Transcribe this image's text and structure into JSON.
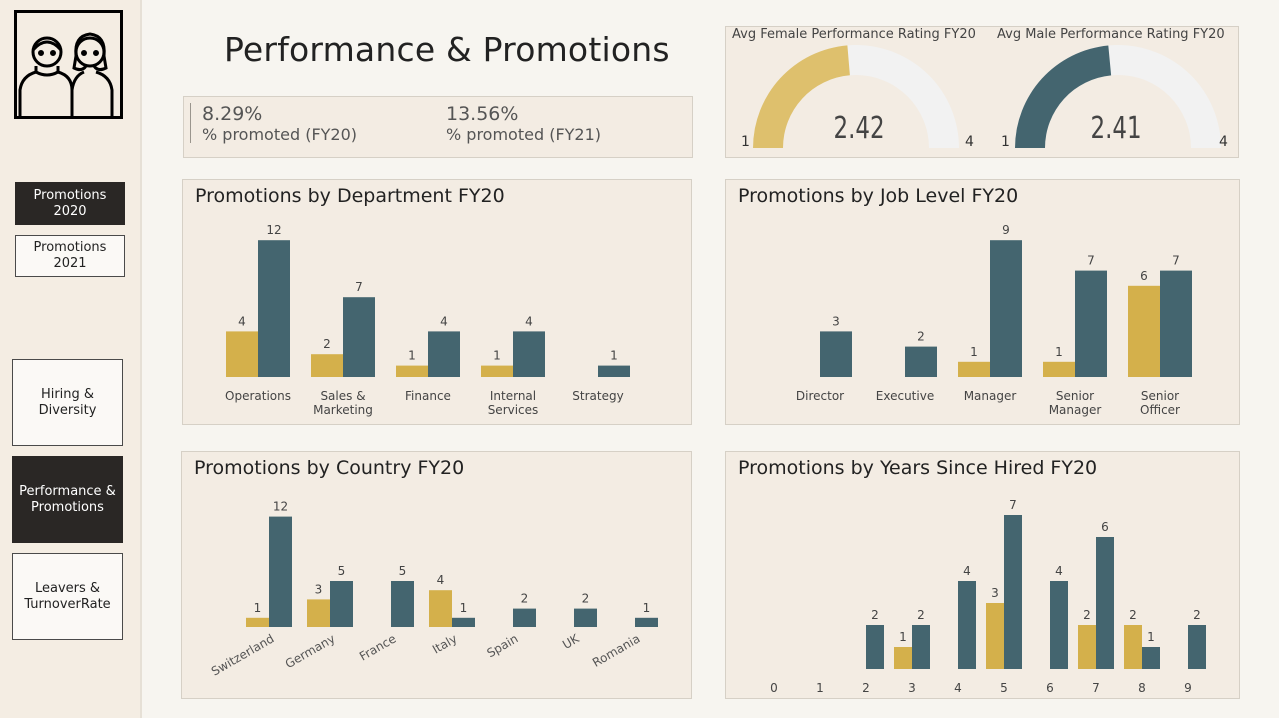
{
  "page_title": "Performance & Promotions",
  "colors": {
    "female": "#d4b04b",
    "male": "#44656f",
    "gauge_bg": "#f2f2f2"
  },
  "nav": {
    "promo2020": "Promotions\n2020",
    "promo2021": "Promotions\n2021",
    "hiring": "Hiring &\nDiversity",
    "performance": "Performance &\nPromotions",
    "leavers": "Leavers &\nTurnoverRate"
  },
  "kpis": {
    "fy20_value": "8.29%",
    "fy20_label": "% promoted (FY20)",
    "fy21_value": "13.56%",
    "fy21_label": "% promoted (FY21)"
  },
  "gauges": {
    "female": {
      "title": "Avg Female Performance Rating FY20",
      "value": 2.42,
      "value_text": "2.42",
      "min": "1",
      "max": "4"
    },
    "male": {
      "title": "Avg Male Performance Rating FY20",
      "value": 2.41,
      "value_text": "2.41",
      "min": "1",
      "max": "4"
    }
  },
  "chart_data": [
    {
      "id": "dept",
      "type": "bar",
      "title": "Promotions by Department FY20",
      "categories": [
        "Operations",
        "Sales &\nMarketing",
        "Finance",
        "Internal\nServices",
        "Strategy"
      ],
      "series": [
        {
          "values": [
            4,
            2,
            1,
            1,
            null
          ]
        },
        {
          "values": [
            12,
            7,
            4,
            4,
            1
          ]
        }
      ],
      "ylim": [
        0,
        12
      ]
    },
    {
      "id": "level",
      "type": "bar",
      "title": "Promotions by Job Level FY20",
      "categories": [
        "Director",
        "Executive",
        "Manager",
        "Senior\nManager",
        "Senior\nOfficer"
      ],
      "series": [
        {
          "values": [
            null,
            null,
            1,
            1,
            6
          ]
        },
        {
          "values": [
            3,
            2,
            9,
            7,
            7
          ]
        }
      ],
      "ylim": [
        0,
        9
      ]
    },
    {
      "id": "country",
      "type": "bar",
      "title": "Promotions by Country FY20",
      "categories": [
        "Switzerland",
        "Germany",
        "France",
        "Italy",
        "Spain",
        "UK",
        "Romania"
      ],
      "series": [
        {
          "values": [
            1,
            3,
            null,
            4,
            null,
            null,
            null
          ]
        },
        {
          "values": [
            12,
            5,
            5,
            1,
            2,
            2,
            1
          ]
        }
      ],
      "ylim": [
        0,
        12
      ]
    },
    {
      "id": "years",
      "type": "bar",
      "title": "Promotions by Years Since Hired FY20",
      "categories": [
        "0",
        "1",
        "2",
        "3",
        "4",
        "5",
        "6",
        "7",
        "8",
        "9"
      ],
      "series": [
        {
          "values": [
            null,
            null,
            null,
            1,
            null,
            3,
            null,
            2,
            2,
            null
          ]
        },
        {
          "values": [
            null,
            null,
            2,
            2,
            4,
            7,
            4,
            6,
            1,
            2
          ]
        }
      ],
      "ylim": [
        0,
        7
      ]
    }
  ]
}
